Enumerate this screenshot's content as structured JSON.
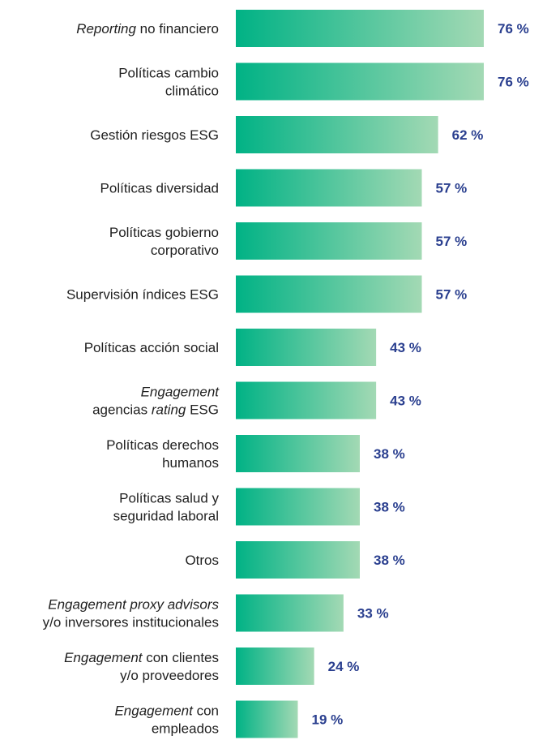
{
  "colors": {
    "bar_start": "#00b285",
    "bar_end": "#a3d9b4",
    "value_text": "#2a3f8f",
    "label_text": "#1f1f1f"
  },
  "chart_data": {
    "type": "bar",
    "orientation": "horizontal",
    "title": "",
    "xlabel": "",
    "ylabel": "",
    "xlim": [
      0,
      100
    ],
    "unit": "%",
    "grid": false,
    "categories": [
      "Reporting no financiero",
      "Políticas cambio climático",
      "Gestión riesgos ESG",
      "Políticas diversidad",
      "Políticas gobierno corporativo",
      "Supervisión índices ESG",
      "Políticas acción social",
      "Engagement agencias rating ESG",
      "Políticas derechos humanos",
      "Políticas salud y seguridad laboral",
      "Otros",
      "Engagement proxy advisors y/o inversores institucionales",
      "Engagement con clientes y/o proveedores",
      "Engagement con empleados"
    ],
    "values": [
      76,
      76,
      62,
      57,
      57,
      57,
      43,
      43,
      38,
      38,
      38,
      33,
      24,
      19
    ],
    "value_labels": [
      "76 %",
      "76 %",
      "62 %",
      "57 %",
      "57 %",
      "57 %",
      "43 %",
      "43 %",
      "38 %",
      "38 %",
      "38 %",
      "33 %",
      "24 %",
      "19 %"
    ],
    "label_lines": [
      [
        [
          {
            "t": "Reporting",
            "i": true
          },
          {
            "t": " no financiero",
            "i": false
          }
        ]
      ],
      [
        [
          {
            "t": "Políticas cambio",
            "i": false
          }
        ],
        [
          {
            "t": "climático",
            "i": false
          }
        ]
      ],
      [
        [
          {
            "t": "Gestión riesgos ESG",
            "i": false
          }
        ]
      ],
      [
        [
          {
            "t": "Políticas diversidad",
            "i": false
          }
        ]
      ],
      [
        [
          {
            "t": "Políticas gobierno",
            "i": false
          }
        ],
        [
          {
            "t": "corporativo",
            "i": false
          }
        ]
      ],
      [
        [
          {
            "t": "Supervisión índices ESG",
            "i": false
          }
        ]
      ],
      [
        [
          {
            "t": "Políticas acción social",
            "i": false
          }
        ]
      ],
      [
        [
          {
            "t": "Engagement",
            "i": true
          }
        ],
        [
          {
            "t": "agencias ",
            "i": false
          },
          {
            "t": "rating",
            "i": true
          },
          {
            "t": " ESG",
            "i": false
          }
        ]
      ],
      [
        [
          {
            "t": "Políticas derechos",
            "i": false
          }
        ],
        [
          {
            "t": "humanos",
            "i": false
          }
        ]
      ],
      [
        [
          {
            "t": "Políticas salud y",
            "i": false
          }
        ],
        [
          {
            "t": "seguridad laboral",
            "i": false
          }
        ]
      ],
      [
        [
          {
            "t": "Otros",
            "i": false
          }
        ]
      ],
      [
        [
          {
            "t": "Engagement proxy advisors",
            "i": true
          }
        ],
        [
          {
            "t": "y/o inversores institucionales",
            "i": false
          }
        ]
      ],
      [
        [
          {
            "t": "Engagement",
            "i": true
          },
          {
            "t": " con clientes",
            "i": false
          }
        ],
        [
          {
            "t": "y/o proveedores",
            "i": false
          }
        ]
      ],
      [
        [
          {
            "t": "Engagement",
            "i": true
          },
          {
            "t": " con",
            "i": false
          }
        ],
        [
          {
            "t": "empleados",
            "i": false
          }
        ]
      ]
    ]
  }
}
